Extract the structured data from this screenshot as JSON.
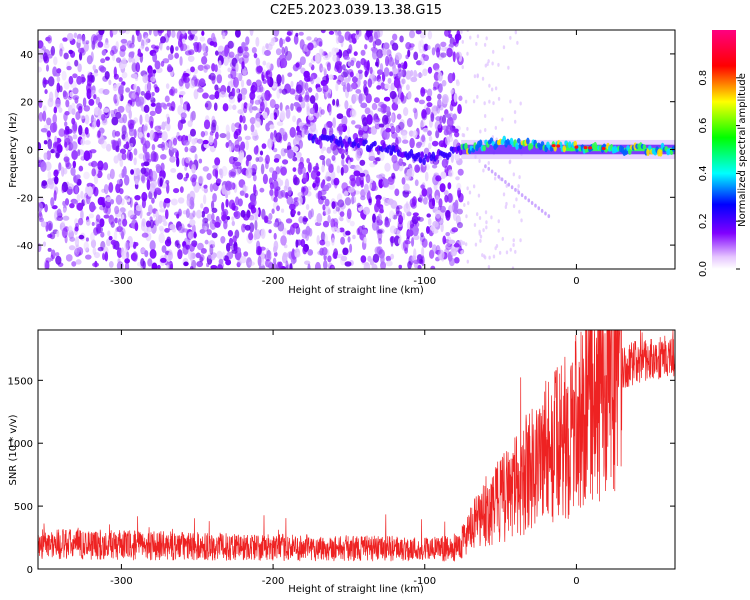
{
  "title": "C2E5.2023.039.13.38.G15",
  "colorbar": {
    "label": "Normalized spectral amplitude",
    "ticks": [
      "0.0",
      "0.2",
      "0.4",
      "0.6",
      "0.8"
    ],
    "tick_values": [
      0.0,
      0.2,
      0.4,
      0.6,
      0.8
    ],
    "range": [
      0,
      1
    ]
  },
  "chart_data": [
    {
      "type": "heatmap",
      "xlabel": "Height of straight line (km)",
      "ylabel": "Frequency (Hz)",
      "xlim": [
        -355,
        65
      ],
      "ylim": [
        -50,
        50
      ],
      "xticks": [
        -300,
        -200,
        -100,
        0
      ],
      "xtick_labels": [
        "-300",
        "-200",
        "-100",
        "0"
      ],
      "yticks": [
        -40,
        -20,
        0,
        20,
        40
      ],
      "ytick_labels": [
        "-40",
        "-20",
        "0",
        "20",
        "40"
      ],
      "colormap": [
        "#ffffff",
        "#e8ccff",
        "#8000ff",
        "#0000ff",
        "#00ffff",
        "#00ff00",
        "#ffff00",
        "#ff0000",
        "#ff00ff"
      ],
      "noise_region_x": [
        -355,
        -76
      ],
      "signal_ridge": [
        {
          "x": -176,
          "y": 5
        },
        {
          "x": -150,
          "y": 3
        },
        {
          "x": -120,
          "y": 0
        },
        {
          "x": -100,
          "y": -4
        },
        {
          "x": -76,
          "y": 0
        },
        {
          "x": -50,
          "y": 3
        },
        {
          "x": -25,
          "y": 2
        },
        {
          "x": 0,
          "y": 1
        },
        {
          "x": 30,
          "y": 0
        },
        {
          "x": 65,
          "y": 0
        }
      ],
      "peak_amplitude_x": [
        -15,
        20
      ]
    },
    {
      "type": "line",
      "xlabel": "Height of straight line (km)",
      "ylabel": "SNR (10 * v/v)",
      "xlim": [
        -355,
        65
      ],
      "ylim": [
        0,
        1900
      ],
      "xticks": [
        -300,
        -200,
        -100,
        0
      ],
      "xtick_labels": [
        "-300",
        "-200",
        "-100",
        "0"
      ],
      "yticks": [
        0,
        500,
        1000,
        1500
      ],
      "ytick_labels": [
        "0",
        "500",
        "1000",
        "1500"
      ],
      "color": "#ee2222",
      "series": [
        {
          "x": [
            -355,
            -300,
            -250,
            -200,
            -150,
            -100,
            -80,
            -70,
            -60,
            -50,
            -40,
            -30,
            -20,
            -10,
            0,
            10,
            20,
            30,
            40,
            50,
            65
          ],
          "values": [
            200,
            190,
            180,
            170,
            165,
            160,
            160,
            300,
            450,
            550,
            650,
            800,
            950,
            1000,
            1150,
            1350,
            1500,
            1600,
            1650,
            1670,
            1700
          ]
        }
      ]
    }
  ]
}
